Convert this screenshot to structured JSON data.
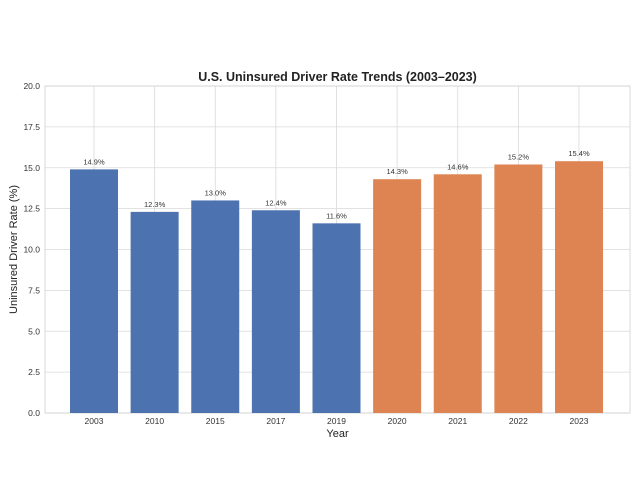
{
  "chart_data": {
    "type": "bar",
    "title": "U.S. Uninsured Driver Rate Trends (2003–2023)",
    "xlabel": "Year",
    "ylabel": "Uninsured Driver Rate (%)",
    "ylim": [
      0,
      20
    ],
    "yticks": [
      "0.0",
      "2.5",
      "5.0",
      "7.5",
      "10.0",
      "12.5",
      "15.0",
      "17.5",
      "20.0"
    ],
    "categories": [
      "2003",
      "2010",
      "2015",
      "2017",
      "2019",
      "2020",
      "2021",
      "2022",
      "2023"
    ],
    "values": [
      14.9,
      12.3,
      13.0,
      12.4,
      11.6,
      14.3,
      14.6,
      15.2,
      15.4
    ],
    "value_labels": [
      "14.9%",
      "12.3%",
      "13.0%",
      "12.4%",
      "11.6%",
      "14.3%",
      "14.6%",
      "15.2%",
      "15.4%"
    ],
    "bar_colors": [
      "#4c72b0",
      "#4c72b0",
      "#4c72b0",
      "#4c72b0",
      "#4c72b0",
      "#dd8452",
      "#dd8452",
      "#dd8452",
      "#dd8452"
    ],
    "grid": true,
    "legend": "none"
  }
}
